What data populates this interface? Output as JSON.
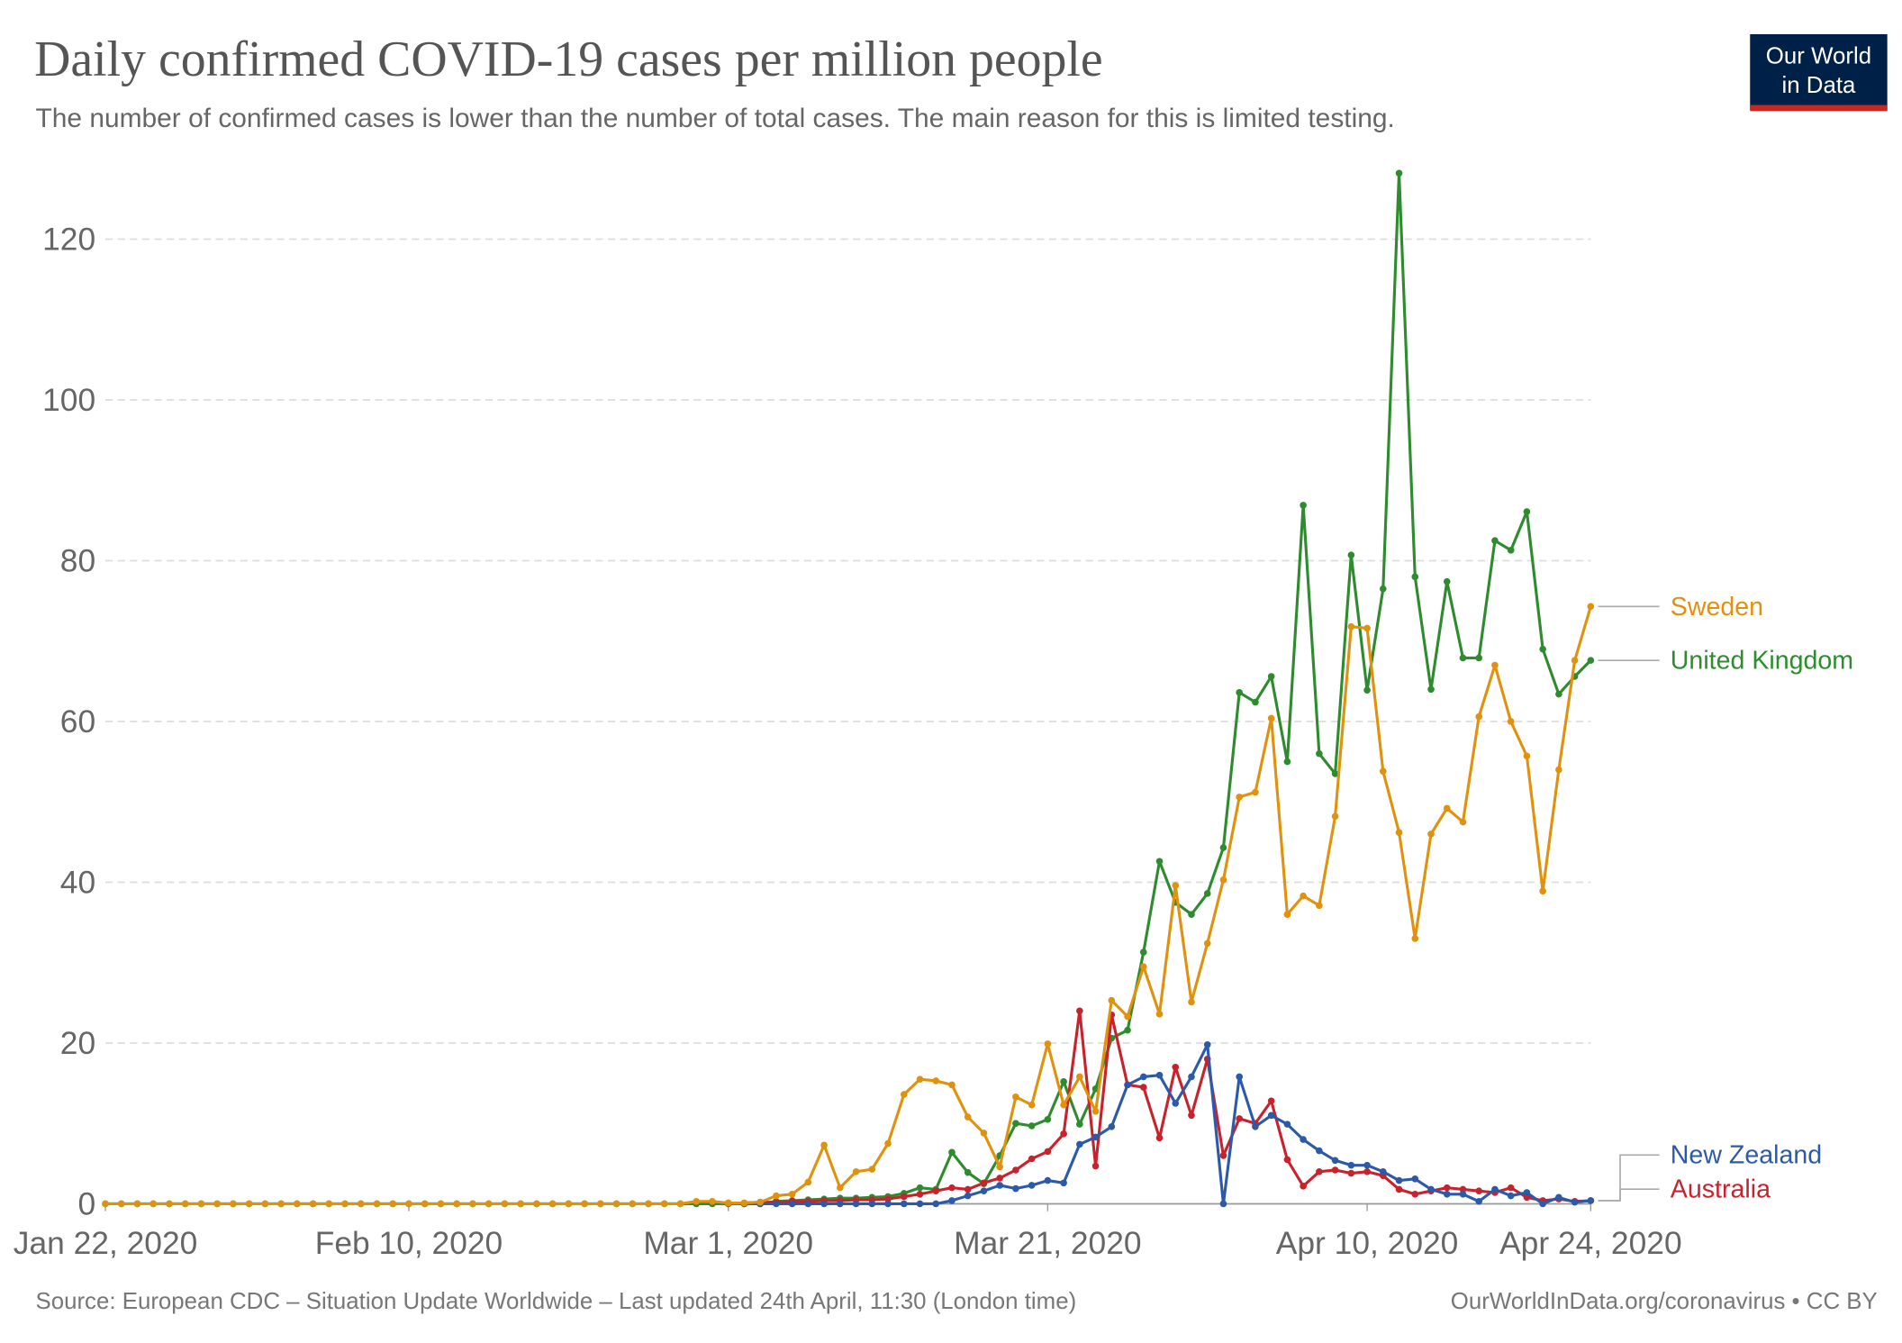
{
  "chart_data": {
    "type": "line",
    "title": "Daily confirmed COVID-19 cases per million people",
    "subtitle": "The number of confirmed cases is lower than the number of total cases. The main reason for this is limited testing.",
    "source": "Source: European CDC – Situation Update Worldwide – Last updated 24th April, 11:30 (London time)",
    "credit": "OurWorldInData.org/coronavirus • CC BY",
    "logo_lines": [
      "Our World",
      "in Data"
    ],
    "x": [
      "2020-01-22",
      "2020-01-23",
      "2020-01-24",
      "2020-01-25",
      "2020-01-26",
      "2020-01-27",
      "2020-01-28",
      "2020-01-29",
      "2020-01-30",
      "2020-01-31",
      "2020-02-01",
      "2020-02-02",
      "2020-02-03",
      "2020-02-04",
      "2020-02-05",
      "2020-02-06",
      "2020-02-07",
      "2020-02-08",
      "2020-02-09",
      "2020-02-10",
      "2020-02-11",
      "2020-02-12",
      "2020-02-13",
      "2020-02-14",
      "2020-02-15",
      "2020-02-16",
      "2020-02-17",
      "2020-02-18",
      "2020-02-19",
      "2020-02-20",
      "2020-02-21",
      "2020-02-22",
      "2020-02-23",
      "2020-02-24",
      "2020-02-25",
      "2020-02-26",
      "2020-02-27",
      "2020-02-28",
      "2020-02-29",
      "2020-03-01",
      "2020-03-02",
      "2020-03-03",
      "2020-03-04",
      "2020-03-05",
      "2020-03-06",
      "2020-03-07",
      "2020-03-08",
      "2020-03-09",
      "2020-03-10",
      "2020-03-11",
      "2020-03-12",
      "2020-03-13",
      "2020-03-14",
      "2020-03-15",
      "2020-03-16",
      "2020-03-17",
      "2020-03-18",
      "2020-03-19",
      "2020-03-20",
      "2020-03-21",
      "2020-03-22",
      "2020-03-23",
      "2020-03-24",
      "2020-03-25",
      "2020-03-26",
      "2020-03-27",
      "2020-03-28",
      "2020-03-29",
      "2020-03-30",
      "2020-03-31",
      "2020-04-01",
      "2020-04-02",
      "2020-04-03",
      "2020-04-04",
      "2020-04-05",
      "2020-04-06",
      "2020-04-07",
      "2020-04-08",
      "2020-04-09",
      "2020-04-10",
      "2020-04-11",
      "2020-04-12",
      "2020-04-13",
      "2020-04-14",
      "2020-04-15",
      "2020-04-16",
      "2020-04-17",
      "2020-04-18",
      "2020-04-19",
      "2020-04-20",
      "2020-04-21",
      "2020-04-22",
      "2020-04-23",
      "2020-04-24"
    ],
    "series": [
      {
        "name": "United Kingdom",
        "color": "#2e8b2e",
        "values": [
          0,
          0,
          0,
          0,
          0,
          0,
          0,
          0,
          0,
          0,
          0,
          0,
          0,
          0,
          0,
          0,
          0,
          0,
          0,
          0,
          0,
          0,
          0,
          0,
          0,
          0,
          0,
          0,
          0,
          0,
          0,
          0,
          0,
          0,
          0,
          0,
          0,
          0,
          0,
          0,
          0,
          0,
          0.3,
          0.4,
          0.5,
          0.6,
          0.7,
          0.7,
          0.8,
          0.9,
          1.3,
          2.0,
          1.8,
          6.4,
          3.9,
          2.5,
          6.0,
          10,
          9.7,
          10.5,
          15.2,
          9.9,
          14.3,
          20.6,
          21.6,
          31.3,
          42.6,
          37.5,
          36,
          38.6,
          44.3,
          63.6,
          62.4,
          65.6,
          55,
          86.9,
          56,
          53.5,
          80.7,
          63.9,
          76.5,
          128.2,
          78,
          64,
          77.4,
          67.9,
          67.9,
          82.5,
          81.3,
          86.1,
          69,
          63.4,
          65.6,
          67.6
        ]
      },
      {
        "name": "Australia",
        "color": "#c8232c",
        "values": [
          null,
          null,
          null,
          null,
          null,
          null,
          null,
          null,
          null,
          null,
          null,
          null,
          null,
          null,
          null,
          null,
          null,
          null,
          null,
          null,
          null,
          null,
          null,
          null,
          null,
          null,
          null,
          null,
          null,
          null,
          null,
          null,
          null,
          null,
          null,
          null,
          null,
          null,
          null,
          0.1,
          0.1,
          0.2,
          0.2,
          0.3,
          0.3,
          0.4,
          0.4,
          0.5,
          0.5,
          0.6,
          0.9,
          1.2,
          1.6,
          2.0,
          1.8,
          2.6,
          3.2,
          4.2,
          5.6,
          6.5,
          8.7,
          24,
          4.7,
          23.5,
          14.8,
          14.5,
          8.2,
          17,
          11,
          18,
          6,
          10.6,
          10,
          12.8,
          5.5,
          2.2,
          4,
          4.2,
          3.8,
          4,
          3.5,
          1.8,
          1.2,
          1.6,
          2.0,
          1.8,
          1.6,
          1.4,
          2.0,
          0.8,
          0.4,
          0.6,
          0.3,
          0.4
        ]
      },
      {
        "name": "New Zealand",
        "color": "#2c5aa8",
        "values": [
          null,
          null,
          null,
          null,
          null,
          null,
          null,
          null,
          null,
          null,
          null,
          null,
          null,
          null,
          null,
          null,
          null,
          null,
          null,
          null,
          null,
          null,
          null,
          null,
          null,
          null,
          null,
          null,
          null,
          null,
          null,
          null,
          null,
          null,
          null,
          null,
          null,
          null,
          null,
          null,
          0,
          0,
          0,
          0,
          0,
          0,
          0,
          0,
          0,
          0,
          0,
          0,
          0,
          0.4,
          1.0,
          1.6,
          2.3,
          1.9,
          2.3,
          2.9,
          2.6,
          7.4,
          8.3,
          9.6,
          14.8,
          15.8,
          16,
          12.5,
          15.8,
          19.8,
          0,
          15.8,
          9.6,
          11,
          9.9,
          8,
          6.6,
          5.4,
          4.8,
          4.8,
          4,
          2.9,
          3.1,
          1.8,
          1.2,
          1.2,
          0.3,
          1.8,
          1.0,
          1.4,
          0,
          0.8,
          0.2,
          0.4
        ]
      },
      {
        "name": "Sweden",
        "color": "#e0920f",
        "values": [
          0,
          0,
          0,
          0,
          0,
          0,
          0,
          0,
          0,
          0,
          0,
          0,
          0,
          0,
          0,
          0,
          0,
          0,
          0,
          0,
          0,
          0,
          0,
          0,
          0,
          0,
          0,
          0,
          0,
          0,
          0,
          0,
          0,
          0,
          0,
          0,
          0,
          0.3,
          0.3,
          0.1,
          0.1,
          0.2,
          1,
          1.2,
          2.7,
          7.3,
          2,
          4,
          4.3,
          7.5,
          13.6,
          15.5,
          15.3,
          14.8,
          10.8,
          8.8,
          4.6,
          13.3,
          12.3,
          19.9,
          12.3,
          15.8,
          11.5,
          25.3,
          23.3,
          29.5,
          23.6,
          39.6,
          25.1,
          32.4,
          40.3,
          50.6,
          51.2,
          60.4,
          36,
          38.3,
          37.1,
          48.2,
          71.8,
          71.6,
          53.8,
          46.2,
          33,
          46,
          49.2,
          47.5,
          60.6,
          67,
          60,
          55.7,
          38.9,
          54,
          67.6,
          74.3
        ]
      }
    ],
    "xlim": [
      "2020-01-22",
      "2020-04-24"
    ],
    "xticks": [
      {
        "value": "2020-01-22",
        "label": "Jan 22, 2020"
      },
      {
        "value": "2020-02-10",
        "label": "Feb 10, 2020"
      },
      {
        "value": "2020-03-01",
        "label": "Mar 1, 2020"
      },
      {
        "value": "2020-03-21",
        "label": "Mar 21, 2020"
      },
      {
        "value": "2020-04-10",
        "label": "Apr 10, 2020"
      },
      {
        "value": "2020-04-24",
        "label": "Apr 24, 2020"
      }
    ],
    "ylim": [
      0,
      130
    ],
    "yticks": [
      0,
      20,
      40,
      60,
      80,
      100,
      120
    ],
    "grid": true
  }
}
